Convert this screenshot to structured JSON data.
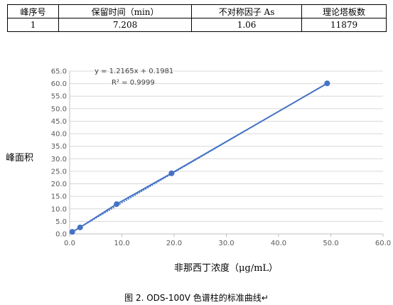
{
  "table": {
    "headers": [
      "峰序号",
      "保留时间（min）",
      "不对称因子 As",
      "理论塔板数"
    ],
    "rows": [
      [
        "1",
        "7.208",
        "1.06",
        "11879"
      ]
    ]
  },
  "chart_data": {
    "type": "scatter",
    "title": "",
    "xlabel": "非那西丁浓度（μg/mL）",
    "ylabel": "峰面积",
    "xlim": [
      0,
      60
    ],
    "ylim": [
      0,
      65
    ],
    "x_ticks": [
      "0.0",
      "10.0",
      "20.0",
      "30.0",
      "40.0",
      "50.0",
      "60.0"
    ],
    "y_ticks": [
      "0.0",
      "5.0",
      "10.0",
      "15.0",
      "20.0",
      "25.0",
      "30.0",
      "35.0",
      "40.0",
      "45.0",
      "50.0",
      "55.0",
      "60.0",
      "65.0"
    ],
    "grid": true,
    "series": [
      {
        "x": [
          0.5,
          2.0,
          9.0,
          19.5,
          49.3
        ],
        "y": [
          0.8,
          2.6,
          11.9,
          24.2,
          60.1
        ]
      }
    ],
    "trendline": {
      "slope": 1.2165,
      "intercept": 0.1981
    },
    "equation": "y = 1.2165x + 0.1981",
    "r_squared": "R² = 0.9999",
    "colors": {
      "series": "#4472C4",
      "grid": "#d9d9d9",
      "axis": "#bfbfbf"
    }
  },
  "caption": "图 2.   ODS-100V 色谱柱的标准曲线↵"
}
